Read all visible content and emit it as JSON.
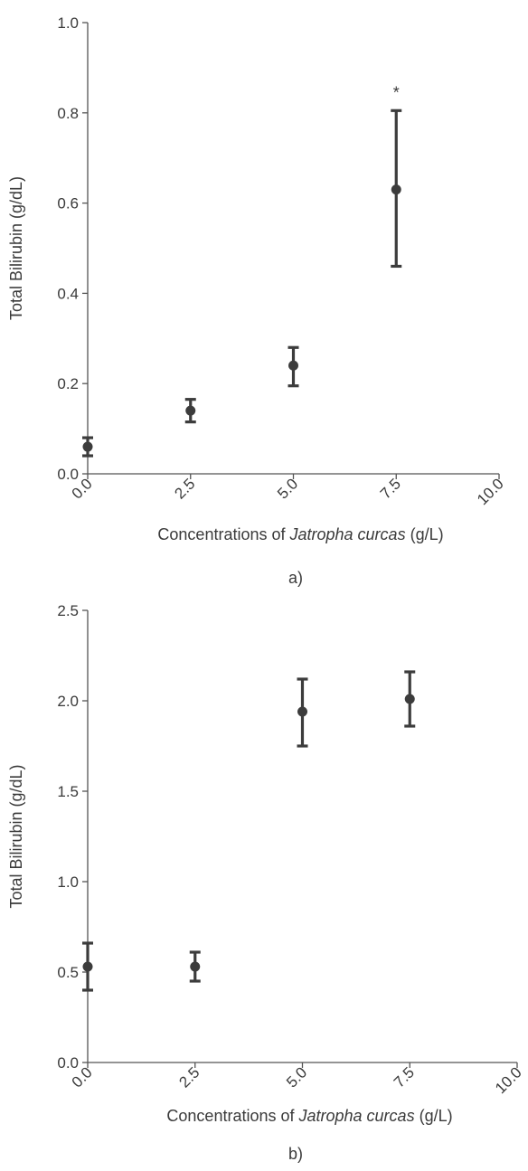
{
  "chart_data": [
    {
      "type": "scatter",
      "panel_label": "a)",
      "xlabel_prefix": "Concentrations of ",
      "xlabel_italic": "Jatropha curcas",
      "xlabel_suffix": " (g/L)",
      "ylabel": "Total Bilirubin (g/dL)",
      "xlim": [
        0,
        10
      ],
      "ylim": [
        0,
        1
      ],
      "x_ticks": [
        "0.0",
        "2.5",
        "5.0",
        "7.5",
        "10.0"
      ],
      "y_ticks": [
        "0.0",
        "0.2",
        "0.4",
        "0.6",
        "0.8",
        "1.0"
      ],
      "points": [
        {
          "x": 0.0,
          "y": 0.06,
          "err_low": 0.04,
          "err_high": 0.08,
          "annotation": ""
        },
        {
          "x": 2.5,
          "y": 0.14,
          "err_low": 0.115,
          "err_high": 0.165,
          "annotation": ""
        },
        {
          "x": 5.0,
          "y": 0.24,
          "err_low": 0.195,
          "err_high": 0.28,
          "annotation": ""
        },
        {
          "x": 7.5,
          "y": 0.63,
          "err_low": 0.46,
          "err_high": 0.805,
          "annotation": "*"
        }
      ]
    },
    {
      "type": "scatter",
      "panel_label": "b)",
      "xlabel_prefix": "Concentrations of ",
      "xlabel_italic": "Jatropha curcas",
      "xlabel_suffix": " (g/L)",
      "ylabel": "Total Bilirubin (g/dL)",
      "xlim": [
        0,
        10
      ],
      "ylim": [
        0,
        2.5
      ],
      "x_ticks": [
        "0.0",
        "2.5",
        "5.0",
        "7.5",
        "10.0"
      ],
      "y_ticks": [
        "0.0",
        "0.5",
        "1.0",
        "1.5",
        "2.0",
        "2.5"
      ],
      "points": [
        {
          "x": 0.0,
          "y": 0.53,
          "err_low": 0.4,
          "err_high": 0.66,
          "annotation": ""
        },
        {
          "x": 2.5,
          "y": 0.53,
          "err_low": 0.45,
          "err_high": 0.61,
          "annotation": ""
        },
        {
          "x": 5.0,
          "y": 1.94,
          "err_low": 1.75,
          "err_high": 2.12,
          "annotation": ""
        },
        {
          "x": 7.5,
          "y": 2.01,
          "err_low": 1.86,
          "err_high": 2.16,
          "annotation": ""
        }
      ]
    }
  ]
}
